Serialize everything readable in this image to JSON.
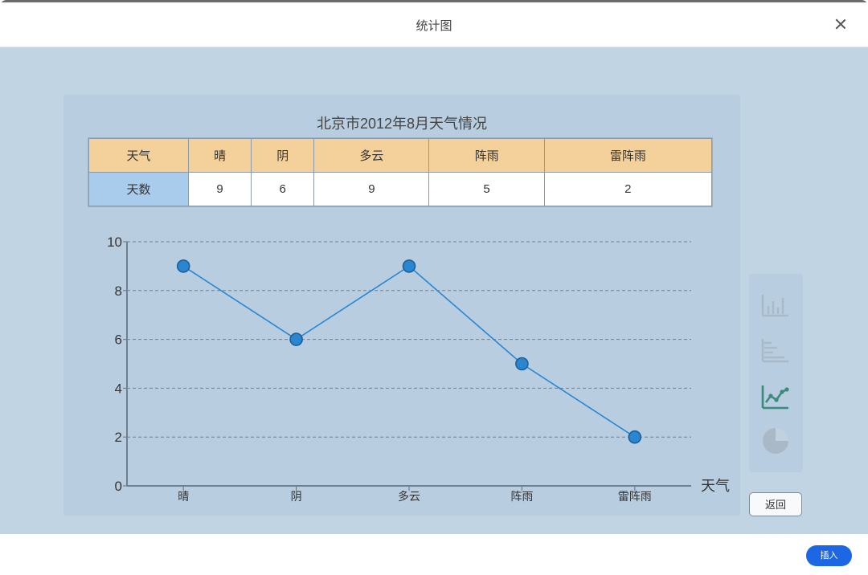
{
  "dialog": {
    "title": "统计图",
    "close_label": "×"
  },
  "table": {
    "header_label": "天气",
    "value_label": "天数",
    "categories": [
      "晴",
      "阴",
      "多云",
      "阵雨",
      "雷阵雨"
    ],
    "values": [
      "9",
      "6",
      "9",
      "5",
      "2"
    ]
  },
  "chart_data": {
    "type": "line",
    "title": "北京市2012年8月天气情况",
    "categories": [
      "晴",
      "阴",
      "多云",
      "阵雨",
      "雷阵雨"
    ],
    "values": [
      9,
      6,
      9,
      5,
      2
    ],
    "xlabel": "天气",
    "ylabel": "",
    "ylim": [
      0,
      10
    ],
    "yticks": [
      "0",
      "2",
      "4",
      "6",
      "8",
      "10"
    ],
    "grid": "horizontal-dashed",
    "color": "#2a86d1"
  },
  "tools": [
    {
      "name": "bar-chart-icon",
      "active": false
    },
    {
      "name": "horizontal-bar-chart-icon",
      "active": false
    },
    {
      "name": "line-chart-icon",
      "active": true
    },
    {
      "name": "pie-chart-icon",
      "active": false
    }
  ],
  "buttons": {
    "back": "返回",
    "insert": "插入"
  }
}
